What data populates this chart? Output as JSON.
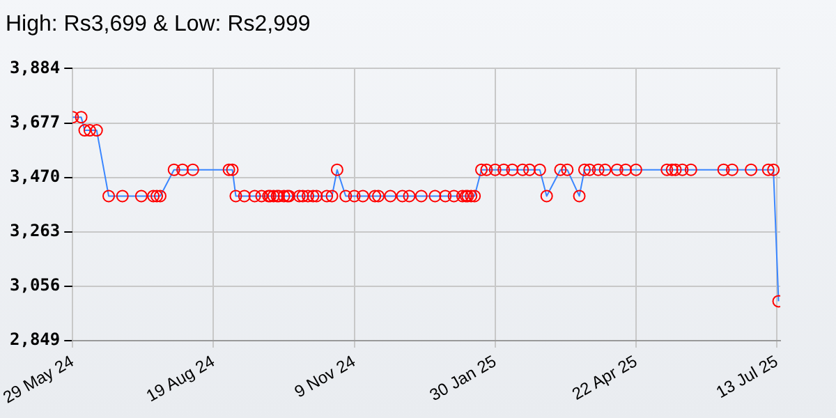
{
  "chart_data": {
    "type": "line",
    "title": "High: Rs3,699 & Low: Rs2,999",
    "x": [
      "2024-05-29",
      "2024-06-03",
      "2024-06-05",
      "2024-06-08",
      "2024-06-12",
      "2024-06-19",
      "2024-06-27",
      "2024-07-08",
      "2024-07-15",
      "2024-07-17",
      "2024-07-19",
      "2024-07-27",
      "2024-08-01",
      "2024-08-07",
      "2024-08-28",
      "2024-08-30",
      "2024-09-01",
      "2024-09-06",
      "2024-09-12",
      "2024-09-16",
      "2024-09-20",
      "2024-09-21",
      "2024-09-23",
      "2024-09-25",
      "2024-09-26",
      "2024-09-29",
      "2024-10-01",
      "2024-10-02",
      "2024-10-08",
      "2024-10-10",
      "2024-10-13",
      "2024-10-16",
      "2024-10-18",
      "2024-10-24",
      "2024-10-27",
      "2024-10-30",
      "2024-11-04",
      "2024-11-09",
      "2024-11-14",
      "2024-11-21",
      "2024-11-23",
      "2024-11-30",
      "2024-12-07",
      "2024-12-11",
      "2024-12-18",
      "2024-12-26",
      "2025-01-01",
      "2025-01-06",
      "2025-01-11",
      "2025-01-13",
      "2025-01-14",
      "2025-01-16",
      "2025-01-18",
      "2025-01-22",
      "2025-01-25",
      "2025-01-30",
      "2025-02-04",
      "2025-02-09",
      "2025-02-15",
      "2025-02-19",
      "2025-02-25",
      "2025-03-01",
      "2025-03-09",
      "2025-03-13",
      "2025-03-20",
      "2025-03-23",
      "2025-03-26",
      "2025-03-31",
      "2025-04-04",
      "2025-04-11",
      "2025-04-16",
      "2025-04-22",
      "2025-05-10",
      "2025-05-13",
      "2025-05-15",
      "2025-05-19",
      "2025-05-24",
      "2025-06-12",
      "2025-06-17",
      "2025-06-28",
      "2025-07-08",
      "2025-07-11",
      "2025-07-14"
    ],
    "series": [
      {
        "color": "#3a86ff",
        "values": [
          3699,
          3699,
          3649,
          3649,
          3649,
          3399,
          3399,
          3399,
          3399,
          3399,
          3399,
          3499,
          3499,
          3499,
          3499,
          3499,
          3399,
          3399,
          3399,
          3399,
          3399,
          3399,
          3399,
          3399,
          3399,
          3399,
          3399,
          3399,
          3399,
          3399,
          3399,
          3399,
          3399,
          3399,
          3399,
          3499,
          3399,
          3399,
          3399,
          3399,
          3399,
          3399,
          3399,
          3399,
          3399,
          3399,
          3399,
          3399,
          3399,
          3399,
          3399,
          3399,
          3399,
          3499,
          3499,
          3499,
          3499,
          3499,
          3499,
          3499,
          3499,
          3399,
          3499,
          3499,
          3399,
          3499,
          3499,
          3499,
          3499,
          3499,
          3499,
          3499,
          3499,
          3499,
          3499,
          3499,
          3499,
          3499,
          3499,
          3499,
          3499,
          3499,
          2999
        ],
        "colors": [
          "#ff0000",
          "#ff0000",
          "#ff0000",
          "#ff0000",
          "#ff0000",
          "#ff0000",
          "#ff0000",
          "#ff0000",
          "#ff0000",
          "#ff0000",
          "#ff0000",
          "#ff0000",
          "#ff0000",
          "#ff0000",
          "#ff0000",
          "#ff0000",
          "#ff0000",
          "#ff0000",
          "#ff0000",
          "#ff0000",
          "#ff0000",
          "#ff0000",
          "#ff0000",
          "#ff0000",
          "#ff0000",
          "#ff0000",
          "#ff0000",
          "#ff0000",
          "#ff0000",
          "#ff0000",
          "#ff0000",
          "#ff0000",
          "#ff0000",
          "#ff0000",
          "#ff0000",
          "#ff0000",
          "#ff0000",
          "#ff0000",
          "#ff0000",
          "#ff0000",
          "#ff0000",
          "#ff0000",
          "#ff0000",
          "#ff0000",
          "#ff0000",
          "#ff0000",
          "#ff0000",
          "#ff0000",
          "#ff0000",
          "#ff0000",
          "#ff0000",
          "#ff0000",
          "#ff0000",
          "#ff0000",
          "#ff0000",
          "#ff0000",
          "#ff0000",
          "#ff0000",
          "#ff0000",
          "#ff0000",
          "#ff0000",
          "#ff0000",
          "#ff0000",
          "#ff0000",
          "#ff0000",
          "#ff0000",
          "#ff0000",
          "#ff0000",
          "#ff0000",
          "#ff0000",
          "#ff0000",
          "#ff0000",
          "#ff0000",
          "#ff0000",
          "#ff0000",
          "#ff0000",
          "#ff0000",
          "#ff0000",
          "#ff0000",
          "#ff0000",
          "#ff0000",
          "#ff0000",
          "#ff0000"
        ]
      }
    ],
    "marker": "circle",
    "grid": true,
    "legend": false,
    "xlim": [
      "2024-05-29",
      "2025-07-15"
    ],
    "xticks": [
      {
        "value": "2024-05-29",
        "label": "29 May 24"
      },
      {
        "value": "2024-08-19",
        "label": "19 Aug 24"
      },
      {
        "value": "2024-11-09",
        "label": "9 Nov 24"
      },
      {
        "value": "2025-01-30",
        "label": "30 Jan 25"
      },
      {
        "value": "2025-04-22",
        "label": "22 Apr 25"
      },
      {
        "value": "2025-07-13",
        "label": "13 Jul 25"
      }
    ],
    "ylim": [
      2849,
      3884
    ],
    "yticks": [
      {
        "value": 2849,
        "label": "2,849"
      },
      {
        "value": 3056,
        "label": "3,056"
      },
      {
        "value": 3263,
        "label": "3,263"
      },
      {
        "value": 3470,
        "label": "3,470"
      },
      {
        "value": 3677,
        "label": "3,677"
      },
      {
        "value": 3884,
        "label": "3,884"
      }
    ]
  }
}
